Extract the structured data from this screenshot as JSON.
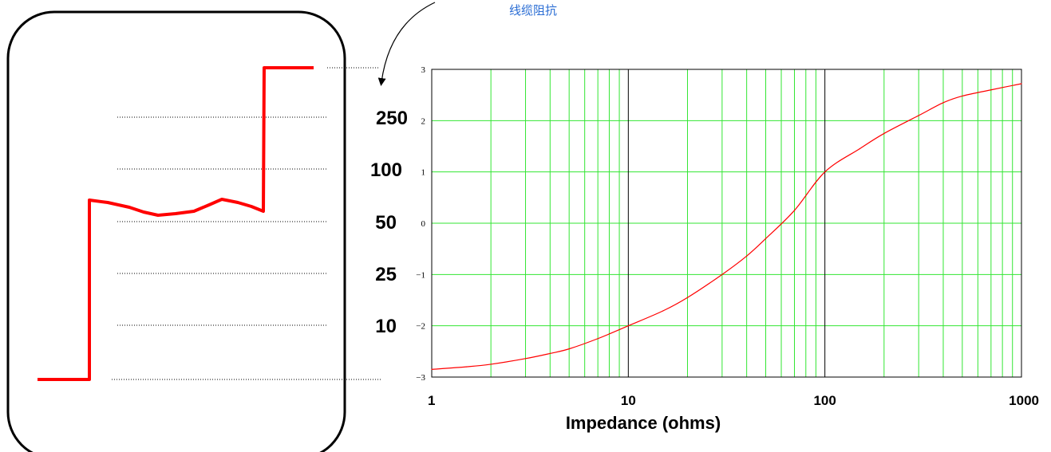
{
  "annotation": "线缆阻抗",
  "tdr_levels": [
    "250",
    "100",
    "50",
    "25",
    "10"
  ],
  "colors": {
    "trace": "#ff0000",
    "grid": "#33e633",
    "annotation": "#2a6dd4"
  },
  "chart_data": {
    "type": "line",
    "title": "",
    "xlabel": "Impedance (ohms)",
    "ylabel": "",
    "xscale": "log",
    "xlim": [
      1,
      1000
    ],
    "ylim": [
      -3,
      3
    ],
    "x_ticks": [
      "1",
      "10",
      "100",
      "1000"
    ],
    "y_ticks": [
      "3",
      "2",
      "1",
      "0",
      "-1",
      "-2",
      "-3"
    ],
    "grid": true,
    "series": [
      {
        "x": [
          1,
          1.5,
          2,
          3,
          4,
          5,
          7,
          10,
          15,
          20,
          30,
          40,
          50,
          70,
          100,
          150,
          200,
          300,
          400,
          500,
          700,
          1000
        ],
        "values": [
          -2.85,
          -2.8,
          -2.75,
          -2.64,
          -2.54,
          -2.45,
          -2.25,
          -2.0,
          -1.71,
          -1.45,
          -1.0,
          -0.64,
          -0.3,
          0.25,
          1.0,
          1.45,
          1.75,
          2.1,
          2.35,
          2.48,
          2.6,
          2.72
        ]
      }
    ]
  }
}
